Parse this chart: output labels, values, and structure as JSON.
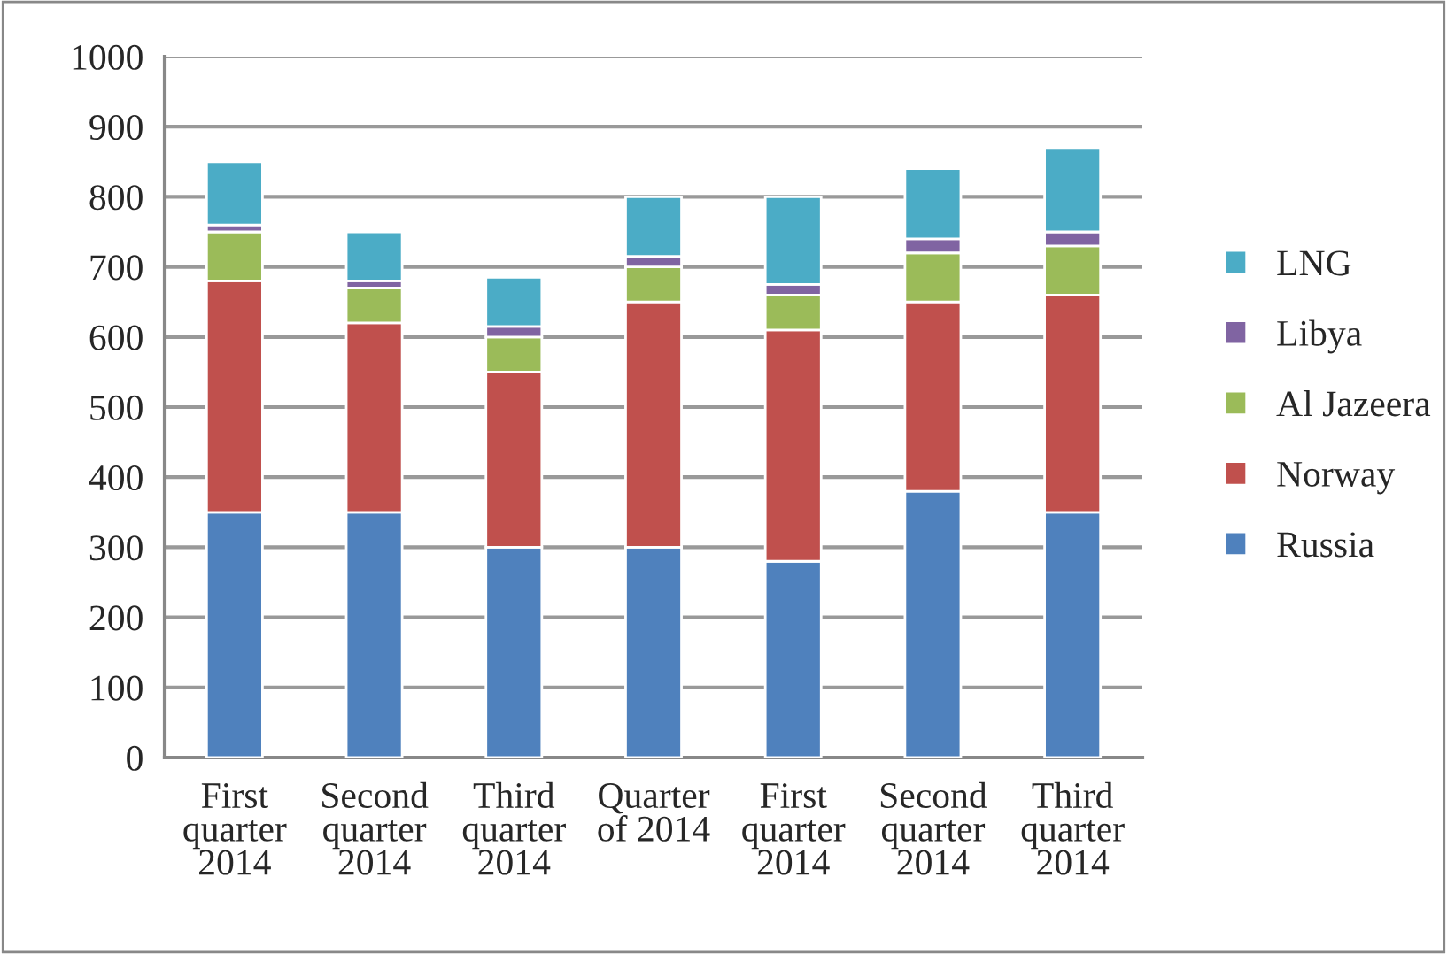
{
  "chart_data": {
    "type": "bar",
    "stacked": true,
    "categories": [
      "First\nquarter\n2014",
      "Second\nquarter\n2014",
      "Third\nquarter\n2014",
      "Quarter\nof 2014",
      "First\nquarter\n2014",
      "Second\nquarter\n2014",
      "Third\nquarter\n2014"
    ],
    "series": [
      {
        "name": "Russia",
        "color": "#4f81bd",
        "values": [
          350,
          350,
          300,
          300,
          280,
          380,
          350
        ]
      },
      {
        "name": "Norway",
        "color": "#c0504d",
        "values": [
          330,
          270,
          250,
          350,
          330,
          270,
          310
        ]
      },
      {
        "name": "Al Jazeera",
        "color": "#9bbb59",
        "values": [
          70,
          50,
          50,
          50,
          50,
          70,
          70
        ]
      },
      {
        "name": "Libya",
        "color": "#8064a2",
        "values": [
          10,
          10,
          15,
          15,
          15,
          20,
          20
        ]
      },
      {
        "name": "LNG",
        "color": "#4bacc6",
        "values": [
          90,
          70,
          70,
          85,
          125,
          100,
          120
        ]
      }
    ],
    "ylim": [
      0,
      1000
    ],
    "yticks": [
      0,
      100,
      200,
      300,
      400,
      500,
      600,
      700,
      800,
      900,
      1000
    ],
    "grid": "y",
    "legend": "right"
  }
}
